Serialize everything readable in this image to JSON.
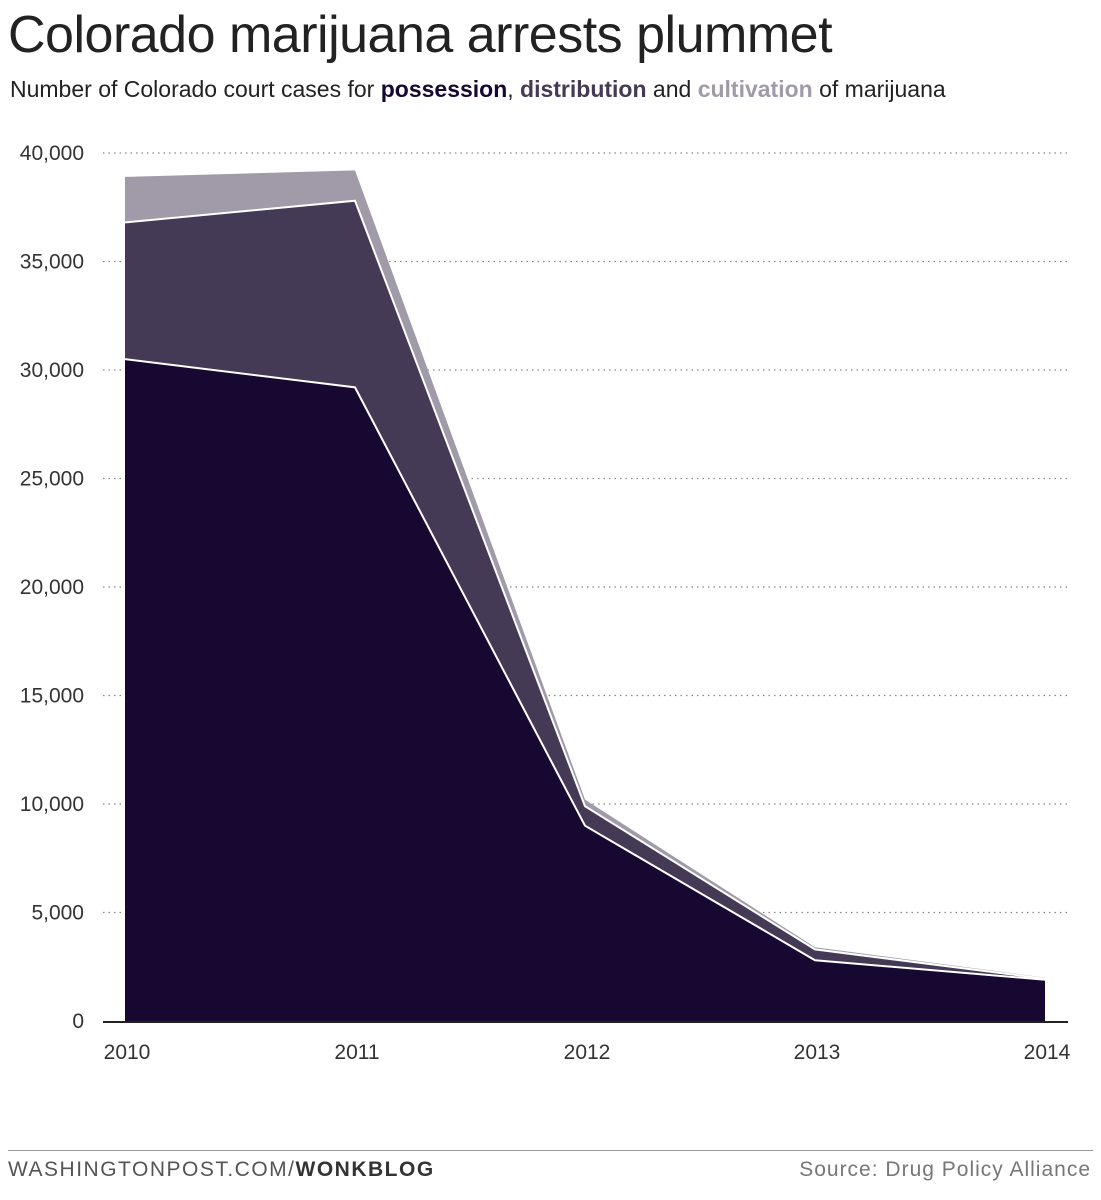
{
  "header": {
    "title": "Colorado marijuana arrests plummet",
    "subtitle_prefix": "Number of Colorado court cases for ",
    "subtitle_sep1": ", ",
    "subtitle_sep2": " and ",
    "subtitle_suffix": " of marijuana"
  },
  "footer": {
    "site": "WASHINGTONPOST.COM/",
    "section": "WONKBLOG",
    "source": "Source: Drug Policy Alliance"
  },
  "colors": {
    "possession": "#170831",
    "distribution": "#443a56",
    "cultivation": "#a19ba9",
    "separator": "#ffffff",
    "grid": "#888888",
    "axis": "#222222"
  },
  "chart_data": {
    "type": "area",
    "stacked": true,
    "title": "Colorado marijuana arrests plummet",
    "subtitle": "Number of Colorado court cases for possession, distribution and cultivation of marijuana",
    "x": [
      "2010",
      "2011",
      "2012",
      "2013",
      "2014"
    ],
    "series": [
      {
        "name": "possession",
        "values": [
          30500,
          29200,
          9000,
          2800,
          1900
        ]
      },
      {
        "name": "distribution",
        "values": [
          6300,
          8600,
          900,
          500,
          50
        ]
      },
      {
        "name": "cultivation",
        "values": [
          2100,
          1400,
          300,
          100,
          50
        ]
      }
    ],
    "ylim": [
      0,
      40000
    ],
    "yticks": [
      0,
      5000,
      10000,
      15000,
      20000,
      25000,
      30000,
      35000,
      40000
    ],
    "ytick_labels": [
      "0",
      "5,000",
      "10,000",
      "15,000",
      "20,000",
      "25,000",
      "30,000",
      "35,000",
      "40,000"
    ],
    "grid": true,
    "xlabel": "",
    "ylabel": ""
  }
}
